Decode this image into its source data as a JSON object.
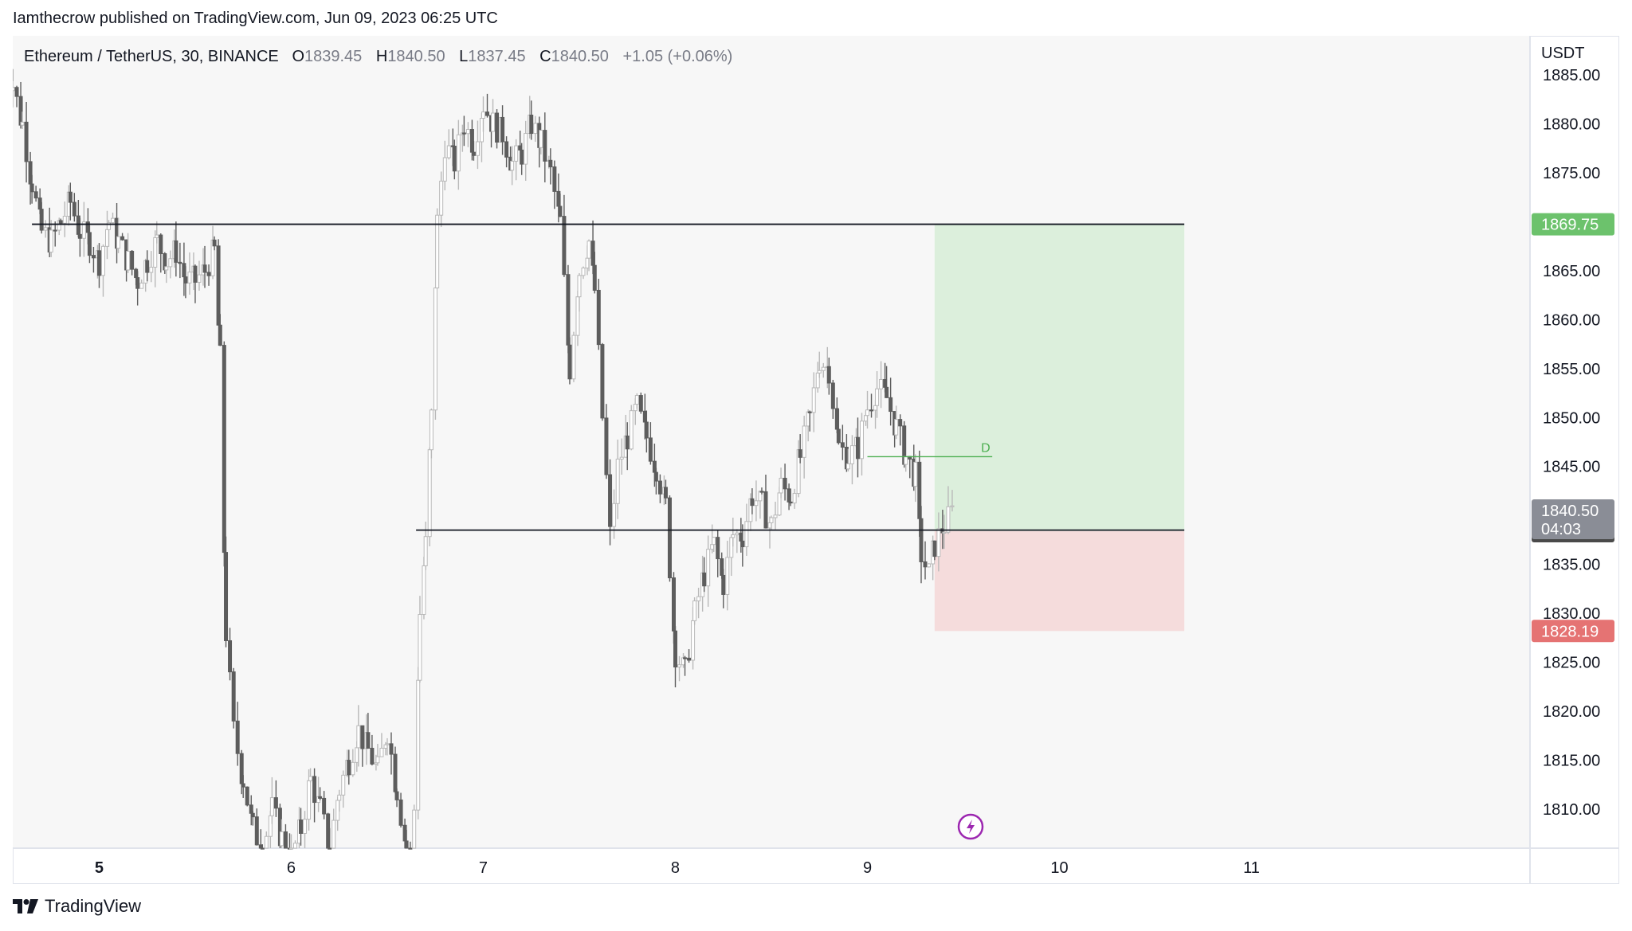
{
  "published": "Iamthecrow published on TradingView.com, Jun 09, 2023 06:25 UTC",
  "header": {
    "symbol": "Ethereum / TetherUS, 30, BINANCE",
    "open_label": "O",
    "open": "1839.45",
    "high_label": "H",
    "high": "1840.50",
    "low_label": "L",
    "low": "1837.45",
    "close_label": "C",
    "close": "1840.50",
    "change": "+1.05 (+0.06%)"
  },
  "footer": {
    "brand": "TradingView"
  },
  "colors": {
    "candle": "#5d5d5d",
    "target_zone": "#dcefdc",
    "stop_zone": "#f5dcdc",
    "target_badge": "#6cc26c",
    "stop_badge": "#e57373",
    "price_badge": "#8a8d96",
    "entry_badge": "#4a4a4a",
    "accent_icon": "#9c27b0"
  },
  "chart_data": {
    "type": "candlestick",
    "y_axis": {
      "unit_label": "USDT",
      "ticks": [
        "1885.00",
        "1880.00",
        "1875.00",
        "1870.00",
        "1865.00",
        "1860.00",
        "1855.00",
        "1850.00",
        "1845.00",
        "1840.00",
        "1835.00",
        "1830.00",
        "1825.00",
        "1820.00",
        "1815.00",
        "1810.00"
      ],
      "range": [
        1806,
        1889
      ]
    },
    "x_axis": {
      "ticks": [
        "5",
        "6",
        "7",
        "8",
        "9",
        "10",
        "11"
      ],
      "range_days": [
        4.55,
        12.45
      ]
    },
    "candles_close_path": [
      [
        4.5,
        1888
      ],
      [
        4.55,
        1884
      ],
      [
        4.6,
        1880
      ],
      [
        4.65,
        1874
      ],
      [
        4.7,
        1869
      ],
      [
        4.75,
        1868
      ],
      [
        4.8,
        1870
      ],
      [
        4.85,
        1872
      ],
      [
        4.9,
        1869
      ],
      [
        4.95,
        1868
      ],
      [
        5.0,
        1866
      ],
      [
        5.05,
        1870
      ],
      [
        5.1,
        1868
      ],
      [
        5.15,
        1866
      ],
      [
        5.2,
        1864
      ],
      [
        5.25,
        1866
      ],
      [
        5.3,
        1868
      ],
      [
        5.35,
        1866
      ],
      [
        5.4,
        1867
      ],
      [
        5.45,
        1864
      ],
      [
        5.5,
        1864
      ],
      [
        5.55,
        1865
      ],
      [
        5.6,
        1867
      ],
      [
        5.63,
        1856
      ],
      [
        5.66,
        1828
      ],
      [
        5.7,
        1818
      ],
      [
        5.75,
        1813
      ],
      [
        5.8,
        1808
      ],
      [
        5.85,
        1806
      ],
      [
        5.9,
        1810
      ],
      [
        5.95,
        1807
      ],
      [
        6.0,
        1805
      ],
      [
        6.05,
        1808
      ],
      [
        6.1,
        1813
      ],
      [
        6.15,
        1810
      ],
      [
        6.2,
        1806
      ],
      [
        6.25,
        1812
      ],
      [
        6.3,
        1815
      ],
      [
        6.35,
        1818
      ],
      [
        6.4,
        1816
      ],
      [
        6.45,
        1814
      ],
      [
        6.5,
        1818
      ],
      [
        6.55,
        1812
      ],
      [
        6.6,
        1806
      ],
      [
        6.62,
        1804
      ],
      [
        6.64,
        1810
      ],
      [
        6.67,
        1830
      ],
      [
        6.7,
        1837
      ],
      [
        6.73,
        1850
      ],
      [
        6.76,
        1870
      ],
      [
        6.8,
        1878
      ],
      [
        6.85,
        1876
      ],
      [
        6.9,
        1880
      ],
      [
        6.95,
        1878
      ],
      [
        7.0,
        1882
      ],
      [
        7.05,
        1880
      ],
      [
        7.1,
        1879
      ],
      [
        7.15,
        1876
      ],
      [
        7.2,
        1877
      ],
      [
        7.25,
        1880
      ],
      [
        7.3,
        1878
      ],
      [
        7.35,
        1875
      ],
      [
        7.4,
        1870
      ],
      [
        7.45,
        1855
      ],
      [
        7.5,
        1865
      ],
      [
        7.55,
        1868
      ],
      [
        7.58,
        1863
      ],
      [
        7.62,
        1850
      ],
      [
        7.66,
        1838
      ],
      [
        7.7,
        1845
      ],
      [
        7.75,
        1848
      ],
      [
        7.8,
        1851
      ],
      [
        7.85,
        1848
      ],
      [
        7.9,
        1845
      ],
      [
        7.95,
        1841
      ],
      [
        8.0,
        1826
      ],
      [
        8.05,
        1824
      ],
      [
        8.1,
        1830
      ],
      [
        8.15,
        1834
      ],
      [
        8.2,
        1837
      ],
      [
        8.25,
        1833
      ],
      [
        8.3,
        1838
      ],
      [
        8.35,
        1838
      ],
      [
        8.4,
        1842
      ],
      [
        8.45,
        1841
      ],
      [
        8.5,
        1839
      ],
      [
        8.55,
        1843
      ],
      [
        8.6,
        1842
      ],
      [
        8.65,
        1846
      ],
      [
        8.7,
        1850
      ],
      [
        8.75,
        1856
      ],
      [
        8.8,
        1855
      ],
      [
        8.85,
        1847
      ],
      [
        8.9,
        1846
      ],
      [
        8.95,
        1847
      ],
      [
        9.0,
        1851
      ],
      [
        9.05,
        1853
      ],
      [
        9.1,
        1852
      ],
      [
        9.15,
        1849
      ],
      [
        9.2,
        1846
      ],
      [
        9.25,
        1844
      ],
      [
        9.28,
        1836
      ],
      [
        9.32,
        1834
      ],
      [
        9.35,
        1837
      ],
      [
        9.4,
        1839
      ],
      [
        9.45,
        1840.5
      ]
    ],
    "levels": [
      {
        "price": 1869.75,
        "badge": "1869.75",
        "kind": "target"
      },
      {
        "price": 1838.39,
        "badge": "1838.39",
        "kind": "entry"
      },
      {
        "price": 1828.19,
        "badge": "1828.19",
        "kind": "stop"
      }
    ],
    "horizontal_lines": [
      {
        "price": 1869.75,
        "from_day": 4.65,
        "to_day": 10.65
      },
      {
        "price": 1838.5,
        "from_day": 6.65,
        "to_day": 10.65
      }
    ],
    "position_box": {
      "from_day": 9.35,
      "to_day": 10.65,
      "target": 1869.75,
      "entry": 1838.39,
      "stop": 1828.19
    },
    "marker_line": {
      "price": 1846,
      "from_day": 9.0,
      "to_day": 9.65,
      "label": "D"
    },
    "last_price": {
      "value": "1840.50",
      "countdown": "04:03"
    }
  }
}
